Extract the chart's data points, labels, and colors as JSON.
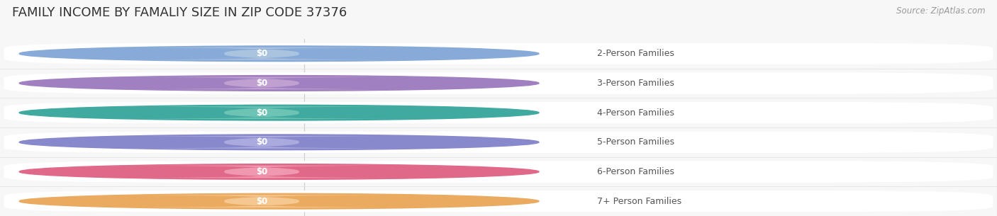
{
  "title": "FAMILY INCOME BY FAMALIY SIZE IN ZIP CODE 37376",
  "source": "Source: ZipAtlas.com",
  "categories": [
    "2-Person Families",
    "3-Person Families",
    "4-Person Families",
    "5-Person Families",
    "6-Person Families",
    "7+ Person Families"
  ],
  "values": [
    0,
    0,
    0,
    0,
    0,
    0
  ],
  "bar_colors": [
    "#aac4e0",
    "#c0a0d0",
    "#6ec4b4",
    "#aaaade",
    "#f098b0",
    "#f4c890"
  ],
  "dot_colors": [
    "#88aad8",
    "#a080c0",
    "#40aaA0",
    "#8888cc",
    "#e06888",
    "#eaaa60"
  ],
  "background_color": "#f7f7f7",
  "title_fontsize": 13,
  "label_fontsize": 9,
  "value_fontsize": 8.5,
  "source_fontsize": 8.5,
  "fig_width": 14.06,
  "fig_height": 3.05
}
